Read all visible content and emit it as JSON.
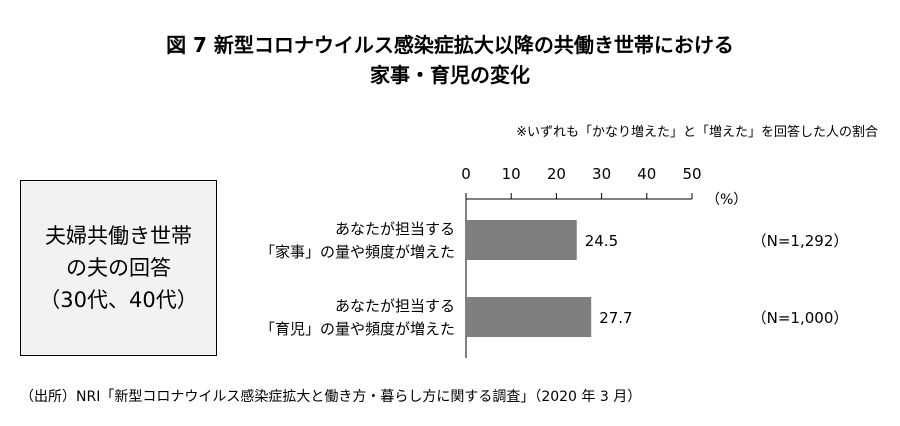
{
  "header": {
    "title_line1": "図 7 新型コロナウイルス感染症拡大以降の共働き世帯における",
    "title_line2": "家事・育児の変化",
    "note": "※いずれも「かなり増えた」と「増えた」を回答した人の割合"
  },
  "group_box": {
    "line1": "夫婦共働き世帯",
    "line2": "の夫の回答",
    "line3": "（30代、40代）"
  },
  "source": "（出所）NRI「新型コロナウイルス感染症拡大と働き方・暮らし方に関する調査」（2020 年 3 月）",
  "colors": {
    "bar": "#7f7f7f",
    "box_background": "#f2f2f2"
  },
  "chart_data": {
    "type": "bar",
    "orientation": "horizontal",
    "categories": [
      [
        "あなたが担当する",
        "「家事」の量や頻度が増えた"
      ],
      [
        "あなたが担当する",
        "「育児」の量や頻度が増えた"
      ]
    ],
    "values": [
      24.5,
      27.7
    ],
    "value_labels": [
      "24.5",
      "27.7"
    ],
    "sample_sizes": [
      "（N=1,292）",
      "（N=1,000）"
    ],
    "xlim": [
      0,
      50
    ],
    "x_ticks": [
      "0",
      "10",
      "20",
      "30",
      "40",
      "50"
    ],
    "x_unit": "（%）",
    "grid": false,
    "axis_position": "top"
  }
}
